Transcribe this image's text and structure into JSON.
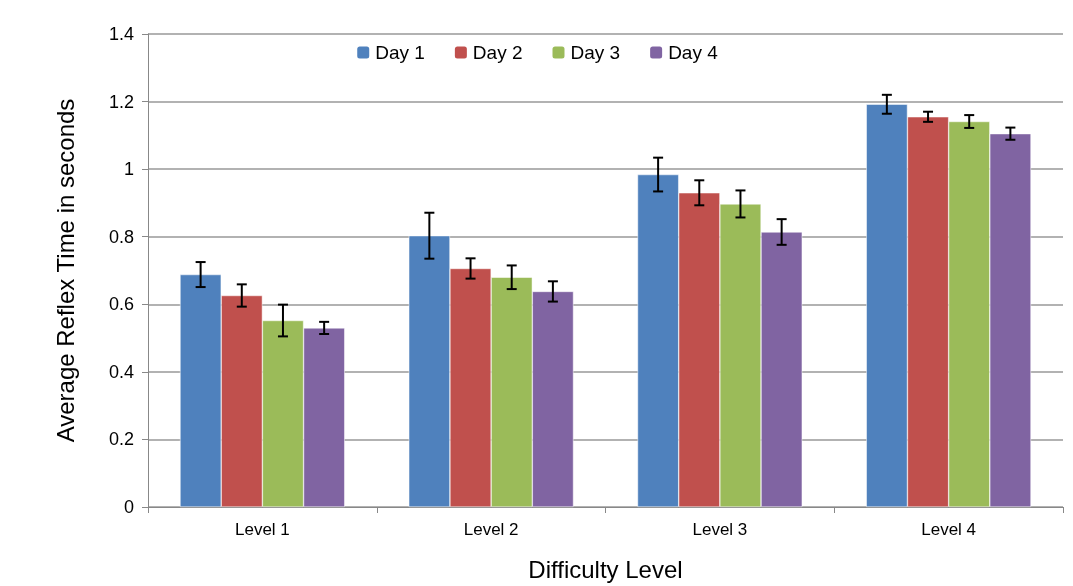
{
  "chart_data": {
    "type": "bar",
    "xlabel": "Difficulty Level",
    "ylabel": "Average Reflex Time in seconds",
    "categories": [
      "Level 1",
      "Level 2",
      "Level 3",
      "Level 4"
    ],
    "series": [
      {
        "name": "Day 1",
        "color": "#4f81bd",
        "values": [
          0.688,
          0.803,
          0.984,
          1.192
        ],
        "errors": [
          0.037,
          0.068,
          0.05,
          0.028
        ]
      },
      {
        "name": "Day 2",
        "color": "#c0504d",
        "values": [
          0.626,
          0.706,
          0.93,
          1.155
        ],
        "errors": [
          0.033,
          0.03,
          0.037,
          0.015
        ]
      },
      {
        "name": "Day 3",
        "color": "#9bbb59",
        "values": [
          0.552,
          0.68,
          0.897,
          1.141
        ],
        "errors": [
          0.047,
          0.035,
          0.04,
          0.019
        ]
      },
      {
        "name": "Day 4",
        "color": "#8064a2",
        "values": [
          0.53,
          0.638,
          0.814,
          1.105
        ],
        "errors": [
          0.018,
          0.03,
          0.038,
          0.018
        ]
      }
    ],
    "ylim": [
      0,
      1.4
    ],
    "yticks": [
      0,
      0.2,
      0.4,
      0.6,
      0.8,
      1,
      1.2,
      1.4
    ],
    "grid": "y",
    "legend": "top"
  }
}
